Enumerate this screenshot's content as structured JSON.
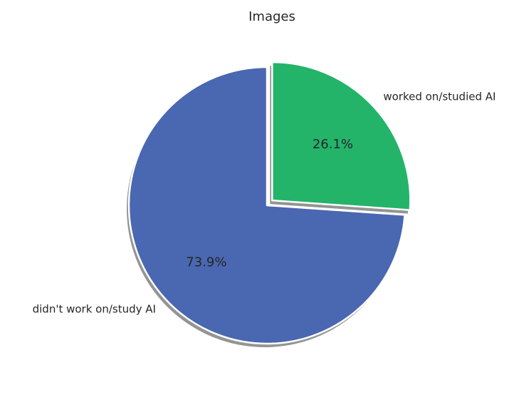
{
  "chart_data": {
    "type": "pie",
    "title": "Images",
    "categories": [
      "worked on/studied AI",
      "didn't work on/study AI"
    ],
    "values": [
      26.1,
      73.9
    ],
    "percent_labels": [
      "26.1%",
      "73.9%"
    ],
    "colors": [
      "#23b46a",
      "#4a67b1"
    ],
    "exploded": [
      true,
      false
    ],
    "shadow": true,
    "start_angle_deg": 90,
    "direction": "clockwise"
  }
}
